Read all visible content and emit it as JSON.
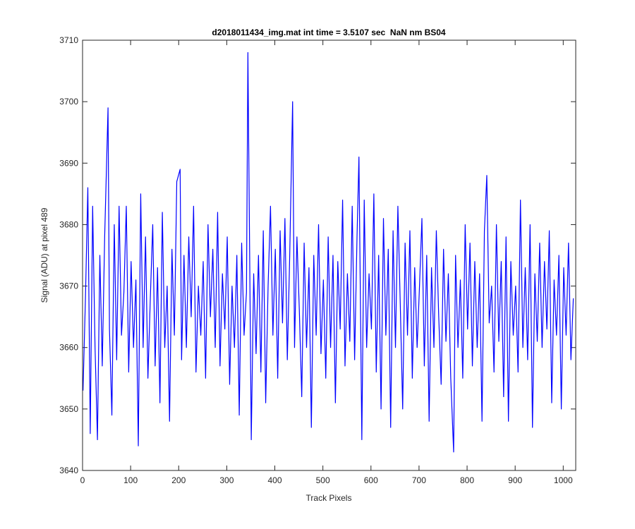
{
  "chart_data": {
    "type": "line",
    "title": "d2018011434_img.mat int time = 3.5107 sec  NaN nm BS04",
    "x_label": "Track Pixels",
    "y_label": "Signal (ADU) at pixel 489",
    "xlim": [
      0,
      1026
    ],
    "ylim": [
      3640,
      3710
    ],
    "xticks": [
      0,
      100,
      200,
      300,
      400,
      500,
      600,
      700,
      800,
      900,
      1000
    ],
    "yticks": [
      3640,
      3650,
      3660,
      3670,
      3680,
      3690,
      3700,
      3710
    ],
    "x": [
      1,
      6,
      11,
      16,
      21,
      26,
      31,
      36,
      41,
      46,
      53,
      56,
      61,
      66,
      71,
      76,
      81,
      86,
      91,
      96,
      101,
      106,
      111,
      116,
      121,
      126,
      131,
      136,
      141,
      146,
      151,
      156,
      161,
      166,
      171,
      176,
      181,
      186,
      191,
      196,
      203,
      206,
      211,
      216,
      221,
      226,
      231,
      236,
      241,
      246,
      251,
      256,
      261,
      266,
      271,
      276,
      281,
      286,
      291,
      296,
      301,
      306,
      311,
      316,
      321,
      326,
      331,
      336,
      341,
      344,
      351,
      356,
      361,
      366,
      371,
      376,
      381,
      386,
      391,
      396,
      401,
      406,
      411,
      416,
      421,
      426,
      431,
      437,
      441,
      446,
      451,
      456,
      461,
      466,
      471,
      476,
      481,
      486,
      491,
      496,
      501,
      506,
      511,
      516,
      521,
      526,
      531,
      536,
      541,
      546,
      551,
      556,
      561,
      566,
      571,
      575,
      581,
      586,
      591,
      596,
      601,
      606,
      611,
      616,
      621,
      626,
      631,
      636,
      641,
      646,
      651,
      656,
      661,
      666,
      671,
      676,
      681,
      686,
      691,
      696,
      701,
      706,
      711,
      716,
      721,
      726,
      731,
      736,
      741,
      746,
      751,
      756,
      761,
      766,
      772,
      776,
      781,
      786,
      791,
      796,
      801,
      806,
      811,
      816,
      821,
      826,
      831,
      836,
      841,
      846,
      851,
      856,
      861,
      866,
      871,
      876,
      881,
      886,
      891,
      896,
      901,
      906,
      911,
      916,
      921,
      926,
      931,
      936,
      941,
      946,
      951,
      956,
      961,
      966,
      971,
      976,
      981,
      986,
      991,
      996,
      1001,
      1006,
      1011,
      1016,
      1021
    ],
    "series": [
      {
        "color": "#0000ff",
        "values": [
          3653,
          3668,
          3686,
          3646,
          3683,
          3660,
          3645,
          3675,
          3657,
          3678,
          3699,
          3663,
          3649,
          3680,
          3658,
          3683,
          3662,
          3669,
          3683,
          3656,
          3674,
          3660,
          3671,
          3644,
          3685,
          3660,
          3678,
          3655,
          3668,
          3680,
          3657,
          3673,
          3651,
          3682,
          3660,
          3670,
          3648,
          3676,
          3662,
          3687,
          3689,
          3658,
          3675,
          3660,
          3678,
          3665,
          3683,
          3656,
          3670,
          3662,
          3674,
          3655,
          3680,
          3665,
          3676,
          3660,
          3682,
          3657,
          3672,
          3663,
          3678,
          3654,
          3670,
          3660,
          3675,
          3649,
          3677,
          3662,
          3669,
          3708,
          3645,
          3672,
          3659,
          3675,
          3656,
          3679,
          3651,
          3670,
          3683,
          3662,
          3676,
          3655,
          3679,
          3664,
          3681,
          3658,
          3675,
          3700,
          3660,
          3678,
          3666,
          3652,
          3677,
          3660,
          3673,
          3647,
          3675,
          3662,
          3680,
          3659,
          3671,
          3655,
          3678,
          3660,
          3675,
          3651,
          3674,
          3663,
          3684,
          3657,
          3672,
          3661,
          3683,
          3658,
          3678,
          3691,
          3645,
          3684,
          3660,
          3672,
          3663,
          3685,
          3656,
          3675,
          3650,
          3681,
          3662,
          3676,
          3647,
          3679,
          3660,
          3683,
          3667,
          3650,
          3677,
          3662,
          3679,
          3655,
          3673,
          3660,
          3670,
          3681,
          3657,
          3675,
          3648,
          3673,
          3660,
          3679,
          3665,
          3654,
          3676,
          3661,
          3672,
          3655,
          3643,
          3675,
          3660,
          3671,
          3655,
          3680,
          3663,
          3677,
          3657,
          3674,
          3660,
          3672,
          3648,
          3679,
          3688,
          3664,
          3670,
          3656,
          3680,
          3661,
          3674,
          3652,
          3678,
          3648,
          3674,
          3662,
          3670,
          3656,
          3684,
          3660,
          3673,
          3658,
          3680,
          3647,
          3672,
          3661,
          3677,
          3660,
          3674,
          3663,
          3679,
          3651,
          3671,
          3662,
          3675,
          3650,
          3673,
          3662,
          3677,
          3658,
          3668
        ]
      }
    ],
    "grid": false
  }
}
